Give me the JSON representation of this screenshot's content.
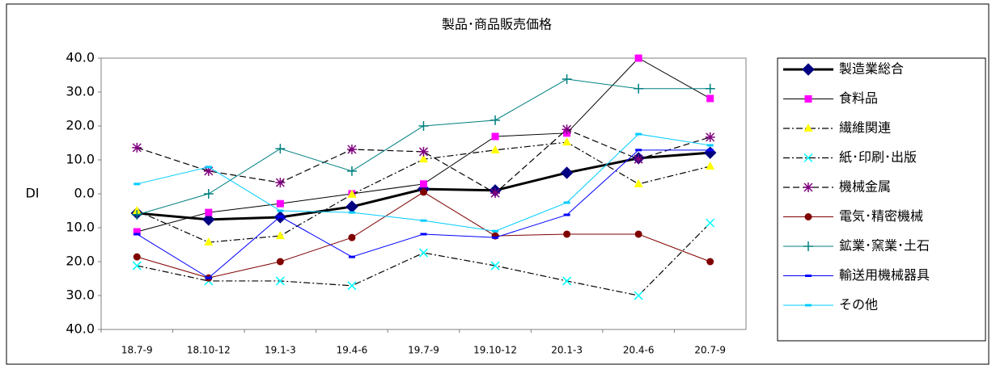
{
  "chart_data": {
    "type": "line",
    "title": "製品･商品販売価格",
    "ylabel": "DI",
    "categories": [
      "18.7-9",
      "18.10-12",
      "19.1-3",
      "19.4-6",
      "19.7-9",
      "19.10-12",
      "20.1-3",
      "20.4-6",
      "20.7-9"
    ],
    "ylim": [
      -40,
      40
    ],
    "yticks": [
      {
        "value": 40,
        "label": "40.0"
      },
      {
        "value": 30,
        "label": "30.0"
      },
      {
        "value": 20,
        "label": "20.0"
      },
      {
        "value": 10,
        "label": "10.0"
      },
      {
        "value": 0,
        "label": "0.0"
      },
      {
        "value": -10,
        "label": "10.0"
      },
      {
        "value": -20,
        "label": "20.0"
      },
      {
        "value": -30,
        "label": "30.0"
      },
      {
        "value": -40,
        "label": "40.0"
      }
    ],
    "grid": false,
    "series": [
      {
        "name": "製造業総合",
        "color": "#000080",
        "line_color": "#000000",
        "line_width": 3,
        "line_style": "solid",
        "marker": "diamond",
        "values": [
          -5.7,
          -7.6,
          -6.9,
          -3.8,
          1.4,
          1.0,
          6.2,
          10.5,
          12.1
        ]
      },
      {
        "name": "食料品",
        "color": "#ff00ff",
        "line_color": "#000000",
        "line_width": 1,
        "line_style": "solid",
        "marker": "square",
        "values": [
          -11.2,
          -5.5,
          -2.9,
          0,
          2.9,
          16.9,
          17.9,
          40.0,
          28.1
        ]
      },
      {
        "name": "繊維関連",
        "color": "#ffff00",
        "line_color": "#000000",
        "line_width": 1.2,
        "line_style": "dashdot",
        "marker": "triangle",
        "values": [
          -5.0,
          -14.3,
          -12.4,
          -0.2,
          10.2,
          12.9,
          15.2,
          2.9,
          8.1
        ]
      },
      {
        "name": "紙･印刷･出版",
        "color": "#00ffff",
        "line_color": "#000000",
        "line_width": 1.2,
        "line_style": "dashdot",
        "marker": "x",
        "values": [
          -21.2,
          -25.7,
          -25.7,
          -27.1,
          -17.4,
          -21.2,
          -25.7,
          -30.0,
          -8.6
        ]
      },
      {
        "name": "機械金属",
        "color": "#800080",
        "line_color": "#000000",
        "line_width": 1.2,
        "line_style": "dashed",
        "marker": "star",
        "values": [
          13.6,
          6.7,
          3.3,
          13.1,
          12.4,
          0.2,
          19.0,
          10.2,
          16.7
        ]
      },
      {
        "name": "電気･精密機械",
        "color": "#800000",
        "line_color": "#800000",
        "line_width": 1,
        "line_style": "solid",
        "marker": "circle",
        "values": [
          -18.6,
          -24.8,
          -20.0,
          -12.9,
          0.5,
          -12.4,
          -11.9,
          -11.9,
          -20.0
        ]
      },
      {
        "name": "鉱業･窯業･土石",
        "color": "#008080",
        "line_color": "#008080",
        "line_width": 1,
        "line_style": "solid",
        "marker": "plus",
        "values": [
          -6.2,
          0,
          13.3,
          6.7,
          20.0,
          21.7,
          33.8,
          31.0,
          31.0
        ]
      },
      {
        "name": "輸送用機械器具",
        "color": "#0000ff",
        "line_color": "#0000ff",
        "line_width": 1,
        "line_style": "solid",
        "marker": "dash",
        "values": [
          -11.9,
          -24.8,
          -6.7,
          -18.6,
          -11.9,
          -12.9,
          -6.2,
          12.9,
          12.9
        ]
      },
      {
        "name": "その他",
        "color": "#00ccff",
        "line_color": "#00ccff",
        "line_width": 1,
        "line_style": "solid",
        "marker": "dash",
        "values": [
          2.9,
          7.9,
          -5.0,
          -5.5,
          -7.9,
          -11.0,
          -2.6,
          17.6,
          14.3
        ]
      }
    ]
  }
}
